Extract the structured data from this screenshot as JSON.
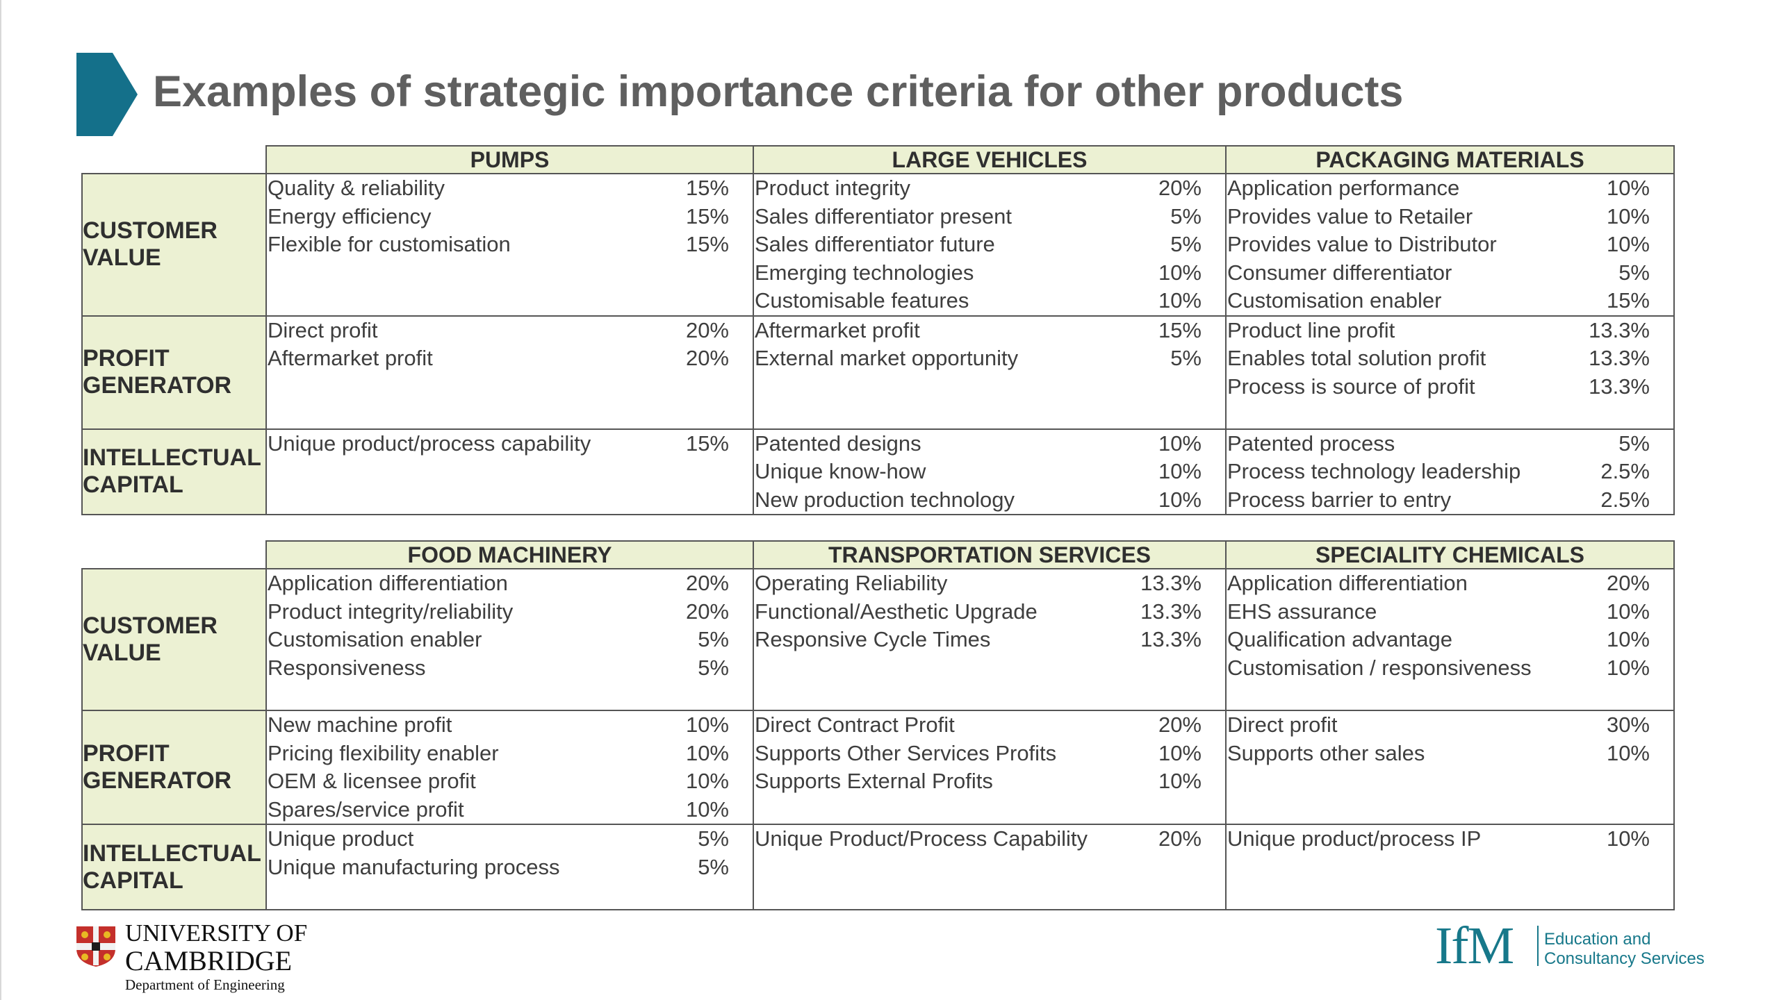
{
  "title": "Examples of strategic importance criteria for other products",
  "row_headers": [
    [
      "CUSTOMER",
      "VALUE"
    ],
    [
      "PROFIT",
      "GENERATOR"
    ],
    [
      "INTELLECTUAL",
      "CAPITAL"
    ]
  ],
  "tables": [
    {
      "columns": [
        "PUMPS",
        "LARGE VEHICLES",
        "PACKAGING MATERIALS"
      ],
      "rows": [
        [
          [
            {
              "label": "Quality & reliability",
              "pct": "15%"
            },
            {
              "label": "Energy efficiency",
              "pct": "15%"
            },
            {
              "label": "Flexible for customisation",
              "pct": "15%"
            }
          ],
          [
            {
              "label": "Product integrity",
              "pct": "20%"
            },
            {
              "label": "Sales differentiator present",
              "pct": "5%"
            },
            {
              "label": "Sales differentiator future",
              "pct": "5%"
            },
            {
              "label": "Emerging technologies",
              "pct": "10%"
            },
            {
              "label": "Customisable features",
              "pct": "10%"
            }
          ],
          [
            {
              "label": "Application performance",
              "pct": "10%"
            },
            {
              "label": "Provides value to Retailer",
              "pct": "10%"
            },
            {
              "label": "Provides value to Distributor",
              "pct": "10%"
            },
            {
              "label": "Consumer differentiator",
              "pct": "5%"
            },
            {
              "label": "Customisation enabler",
              "pct": "15%"
            }
          ]
        ],
        [
          [
            {
              "label": "Direct profit",
              "pct": "20%"
            },
            {
              "label": "Aftermarket profit",
              "pct": "20%"
            }
          ],
          [
            {
              "label": "Aftermarket profit",
              "pct": "15%"
            },
            {
              "label": "External market opportunity",
              "pct": "5%"
            }
          ],
          [
            {
              "label": "Product line profit",
              "pct": "13.3%"
            },
            {
              "label": "Enables total solution profit",
              "pct": "13.3%"
            },
            {
              "label": "Process is source of profit",
              "pct": "13.3%"
            }
          ]
        ],
        [
          [
            {
              "label": "Unique product/process capability",
              "pct": "15%"
            }
          ],
          [
            {
              "label": "Patented designs",
              "pct": "10%"
            },
            {
              "label": "Unique know-how",
              "pct": "10%"
            },
            {
              "label": "New production technology",
              "pct": "10%"
            }
          ],
          [
            {
              "label": "Patented process",
              "pct": "5%"
            },
            {
              "label": "Process technology leadership",
              "pct": "2.5%"
            },
            {
              "label": "Process barrier to entry",
              "pct": "2.5%"
            }
          ]
        ]
      ]
    },
    {
      "columns": [
        "FOOD MACHINERY",
        "TRANSPORTATION SERVICES",
        "SPECIALITY CHEMICALS"
      ],
      "rows": [
        [
          [
            {
              "label": "Application differentiation",
              "pct": "20%"
            },
            {
              "label": "Product integrity/reliability",
              "pct": "20%"
            },
            {
              "label": "Customisation enabler",
              "pct": "5%"
            },
            {
              "label": "Responsiveness",
              "pct": "5%"
            }
          ],
          [
            {
              "label": "Operating Reliability",
              "pct": "13.3%"
            },
            {
              "label": "Functional/Aesthetic Upgrade",
              "pct": "13.3%"
            },
            {
              "label": "Responsive Cycle Times",
              "pct": "13.3%"
            }
          ],
          [
            {
              "label": "Application differentiation",
              "pct": "20%"
            },
            {
              "label": "EHS assurance",
              "pct": "10%"
            },
            {
              "label": "Qualification advantage",
              "pct": "10%"
            },
            {
              "label": "Customisation / responsiveness",
              "pct": "10%"
            }
          ]
        ],
        [
          [
            {
              "label": "New machine profit",
              "pct": "10%"
            },
            {
              "label": "Pricing flexibility enabler",
              "pct": "10%"
            },
            {
              "label": "OEM & licensee profit",
              "pct": "10%"
            },
            {
              "label": "Spares/service profit",
              "pct": "10%"
            }
          ],
          [
            {
              "label": "Direct Contract Profit",
              "pct": "20%"
            },
            {
              "label": "Supports Other Services Profits",
              "pct": "10%"
            },
            {
              "label": "Supports External Profits",
              "pct": "10%"
            }
          ],
          [
            {
              "label": "Direct profit",
              "pct": "30%"
            },
            {
              "label": "Supports other sales",
              "pct": "10%"
            }
          ]
        ],
        [
          [
            {
              "label": "Unique product",
              "pct": "5%"
            },
            {
              "label": "Unique manufacturing process",
              "pct": "5%"
            }
          ],
          [
            {
              "label": "Unique Product/Process Capability",
              "pct": "20%"
            }
          ],
          [
            {
              "label": "Unique product/process IP",
              "pct": "10%"
            }
          ]
        ]
      ]
    }
  ],
  "footer": {
    "cambridge": {
      "line1": "UNIVERSITY OF",
      "line2": "CAMBRIDGE",
      "line3": "Department of Engineering"
    },
    "ifm": {
      "logo": "IfM",
      "line1": "Education and",
      "line2": "Consultancy Services"
    }
  },
  "colors": {
    "marker": "#14708a",
    "header_fill": "#ecf1d3",
    "title": "#5f5f5f",
    "ifm": "#17788a"
  }
}
